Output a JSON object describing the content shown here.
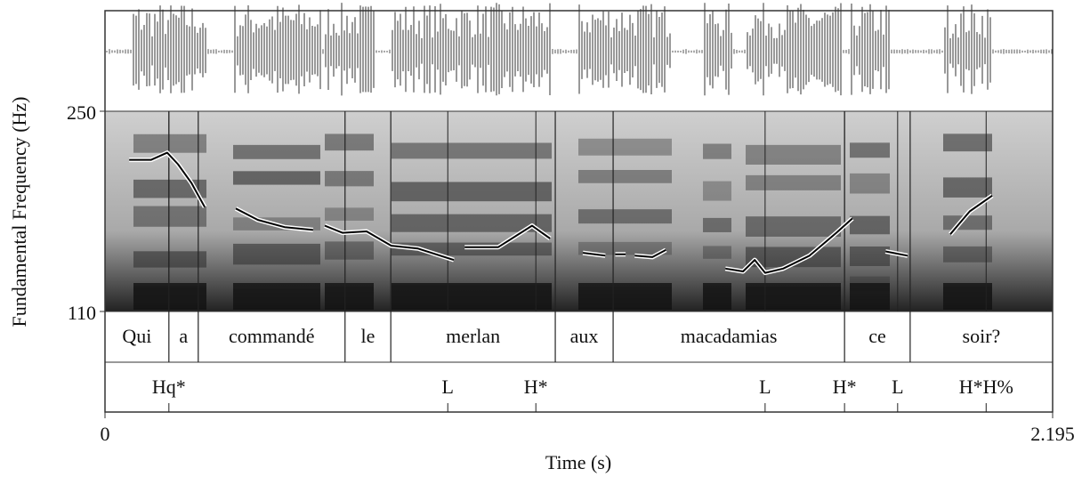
{
  "chart_data": {
    "type": "line",
    "x_label": "Time (s)",
    "y_label": "Fundamental Frequency (Hz)",
    "xlim": [
      0,
      2.195
    ],
    "ylim": [
      110,
      250
    ],
    "xticks": [
      0,
      2.195
    ],
    "yticks": [
      110,
      250
    ],
    "color": "#000000",
    "x": [
      0.056,
      0.107,
      0.144,
      0.169,
      0.2,
      0.231,
      null,
      0.303,
      0.354,
      0.416,
      0.482,
      null,
      0.509,
      0.55,
      0.606,
      0.663,
      0.725,
      0.808,
      null,
      0.833,
      0.911,
      0.989,
      1.031,
      null,
      1.107,
      1.159,
      null,
      1.182,
      1.206,
      null,
      1.227,
      1.268,
      1.299,
      null,
      1.437,
      1.478,
      1.505,
      1.529,
      1.571,
      1.632,
      1.694,
      1.731,
      null,
      1.808,
      1.859,
      null,
      1.958,
      2.003,
      2.055
    ],
    "values": [
      216,
      216,
      221,
      213,
      200,
      183,
      null,
      182,
      174,
      169,
      167,
      null,
      170,
      165,
      166,
      156,
      154,
      146,
      null,
      155,
      155,
      170,
      161,
      null,
      151,
      149,
      null,
      150,
      150,
      null,
      149,
      148,
      153,
      null,
      140,
      138,
      146,
      137,
      140,
      149,
      165,
      175,
      null,
      152,
      149,
      null,
      164,
      180,
      191
    ],
    "words": [
      {
        "label": "Qui",
        "start": 0,
        "end": 0.148
      },
      {
        "label": "a",
        "start": 0.148,
        "end": 0.216
      },
      {
        "label": "commandé",
        "start": 0.216,
        "end": 0.556
      },
      {
        "label": "le",
        "start": 0.556,
        "end": 0.662
      },
      {
        "label": "merlan",
        "start": 0.662,
        "end": 1.043
      },
      {
        "label": "aux",
        "start": 1.043,
        "end": 1.177
      },
      {
        "label": "macadamias",
        "start": 1.177,
        "end": 1.713
      },
      {
        "label": "ce",
        "start": 1.713,
        "end": 1.865
      },
      {
        "label": "soir?",
        "start": 1.865,
        "end": 2.195
      }
    ],
    "tones": [
      {
        "label": "Hq*",
        "time": 0.148
      },
      {
        "label": "L",
        "time": 0.794
      },
      {
        "label": "H*",
        "time": 0.998
      },
      {
        "label": "L",
        "time": 1.529
      },
      {
        "label": "H*",
        "time": 1.713
      },
      {
        "label": "L",
        "time": 1.836
      },
      {
        "label": "H*H%",
        "time": 2.041
      }
    ]
  }
}
